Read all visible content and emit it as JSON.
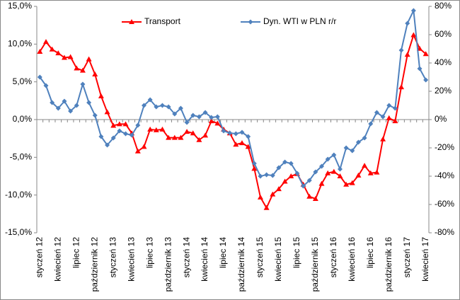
{
  "chart_data": {
    "type": "line",
    "categories": [
      "styczeń 12",
      null,
      null,
      "kwiecień 12",
      null,
      null,
      "lipiec 12",
      null,
      null,
      "październik 12",
      null,
      null,
      "styczeń 13",
      null,
      null,
      "kwiecień 13",
      null,
      null,
      "lipiec 13",
      null,
      null,
      "październik 13",
      null,
      null,
      "styczeń 14",
      null,
      null,
      "kwiecień 14",
      null,
      null,
      "lipiec 14",
      null,
      null,
      "październik 14",
      null,
      null,
      "styczeń 15",
      null,
      null,
      "kwiecień 15",
      null,
      null,
      "lipiec 15",
      null,
      null,
      "październik 15",
      null,
      null,
      "styczeń 16",
      null,
      null,
      "kwiecień 16",
      null,
      null,
      "lipiec 16",
      null,
      null,
      "październik 16",
      null,
      null,
      "styczeń 17",
      null,
      null,
      "kwiecień 17"
    ],
    "series": [
      {
        "name": "Transport",
        "color": "#ff0000",
        "marker": "triangle",
        "axis": "y",
        "values": [
          9.0,
          10.3,
          9.3,
          8.8,
          8.2,
          8.3,
          6.8,
          6.5,
          8.0,
          6.0,
          3.1,
          1.0,
          -0.8,
          -0.6,
          -0.6,
          -1.8,
          -4.2,
          -3.6,
          -1.3,
          -1.4,
          -1.3,
          -2.4,
          -2.4,
          -2.4,
          -1.6,
          -1.8,
          -2.7,
          -2.1,
          -0.2,
          -0.5,
          -1.3,
          -1.8,
          -3.3,
          -3.1,
          -3.6,
          -6.5,
          -10.3,
          -11.7,
          -9.9,
          -9.2,
          -8.2,
          -7.5,
          -7.2,
          -8.6,
          -10.2,
          -10.5,
          -8.5,
          -7.1,
          -6.9,
          -7.5,
          -8.6,
          -8.4,
          -7.4,
          -6.1,
          -7.1,
          -7.0,
          -2.6,
          0.2,
          -0.2,
          4.3,
          8.6,
          11.2,
          9.4,
          8.7
        ]
      },
      {
        "name": "Dyn. WTI w PLN r/r",
        "color": "#4f81bd",
        "marker": "diamond",
        "axis": "y2",
        "values": [
          30,
          24,
          12,
          8,
          13,
          6,
          10,
          25,
          12,
          3,
          -12,
          -18,
          -13,
          -8,
          -10,
          -11,
          -4,
          10,
          14,
          9,
          10,
          9,
          4,
          8,
          -2,
          3,
          2,
          5,
          1.5,
          2,
          -8,
          -9.5,
          -10,
          -9,
          -12,
          -31,
          -40,
          -39,
          -39.5,
          -34,
          -30,
          -31,
          -38,
          -47,
          -43,
          -37,
          -33,
          -28,
          -25,
          -35,
          -20,
          -22,
          -16,
          -13,
          -3,
          5,
          2,
          10,
          8,
          49,
          68,
          77,
          36,
          28
        ]
      }
    ],
    "ylim": [
      -15,
      15
    ],
    "yticks": [
      {
        "value": -15,
        "label": "-15,0%"
      },
      {
        "value": -10,
        "label": "-10,0%"
      },
      {
        "value": -5,
        "label": "-5,0%"
      },
      {
        "value": 0,
        "label": "0,0%"
      },
      {
        "value": 5,
        "label": "5,0%"
      },
      {
        "value": 10,
        "label": "10,0%"
      },
      {
        "value": 15,
        "label": "15,0%"
      }
    ],
    "y2lim": [
      -80,
      80
    ],
    "y2ticks": [
      {
        "value": -80,
        "label": "-80%"
      },
      {
        "value": -60,
        "label": "-60%"
      },
      {
        "value": -40,
        "label": "-40%"
      },
      {
        "value": -20,
        "label": "-20%"
      },
      {
        "value": 0,
        "label": "0%"
      },
      {
        "value": 20,
        "label": "20%"
      },
      {
        "value": 40,
        "label": "40%"
      },
      {
        "value": 60,
        "label": "60%"
      },
      {
        "value": 80,
        "label": "80%"
      }
    ],
    "legend": "top"
  }
}
